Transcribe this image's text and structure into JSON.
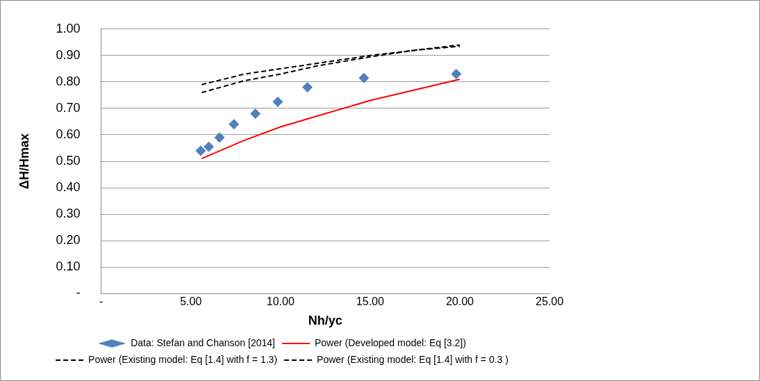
{
  "chart_data": {
    "type": "scatter",
    "xlabel": "Nh/yc",
    "ylabel": "ΔH/Hmax",
    "xlim": [
      0,
      25
    ],
    "xticks": [
      {
        "value": 0,
        "label": "-"
      },
      {
        "value": 5,
        "label": "5.00"
      },
      {
        "value": 10,
        "label": "10.00"
      },
      {
        "value": 15,
        "label": "15.00"
      },
      {
        "value": 20,
        "label": "20.00"
      },
      {
        "value": 25,
        "label": "25.00"
      }
    ],
    "ylim": [
      0,
      1
    ],
    "yticks": [
      {
        "value": 0,
        "label": "-"
      },
      {
        "value": 0.1,
        "label": "0.10"
      },
      {
        "value": 0.2,
        "label": "0.20"
      },
      {
        "value": 0.3,
        "label": "0.30"
      },
      {
        "value": 0.4,
        "label": "0.40"
      },
      {
        "value": 0.5,
        "label": "0.50"
      },
      {
        "value": 0.6,
        "label": "0.60"
      },
      {
        "value": 0.7,
        "label": "0.70"
      },
      {
        "value": 0.8,
        "label": "0.80"
      },
      {
        "value": 0.9,
        "label": "0.90"
      },
      {
        "value": 1,
        "label": "1.00"
      }
    ],
    "grid": "y",
    "legend": "bottom",
    "series": [
      {
        "name": "Data: Stefan and Chanson [2014]",
        "color": "#4f81bd",
        "marker": "diamond",
        "x": [
          5.55,
          6.0,
          6.6,
          7.4,
          8.6,
          9.85,
          11.5,
          14.65,
          19.8
        ],
        "values": [
          0.54,
          0.555,
          0.59,
          0.64,
          0.68,
          0.725,
          0.78,
          0.815,
          0.83
        ]
      },
      {
        "name": "Power (Developed model: Eq [3.2])",
        "type": "line",
        "color": "#ff0000",
        "marker": "none",
        "line_style": "solid",
        "x": [
          5.6,
          8,
          10,
          12,
          15,
          17.5,
          20
        ],
        "values": [
          0.51,
          0.58,
          0.63,
          0.67,
          0.73,
          0.77,
          0.81
        ]
      },
      {
        "name": "Power (Existing model: Eq [1.4] with f = 1.3)",
        "type": "line",
        "color": "#000000",
        "marker": "none",
        "line_style": "dashed",
        "x": [
          5.6,
          8,
          10,
          12,
          15,
          17.5,
          20
        ],
        "values": [
          0.76,
          0.805,
          0.83,
          0.86,
          0.895,
          0.92,
          0.94
        ]
      },
      {
        "name": "Power (Existing model: Eq [1.4] with f = 0.3 )",
        "type": "line",
        "color": "#000000",
        "marker": "none",
        "line_style": "dashed",
        "x": [
          5.6,
          8,
          10,
          12,
          15,
          17.5,
          20
        ],
        "values": [
          0.79,
          0.83,
          0.85,
          0.87,
          0.9,
          0.92,
          0.935
        ]
      }
    ]
  }
}
